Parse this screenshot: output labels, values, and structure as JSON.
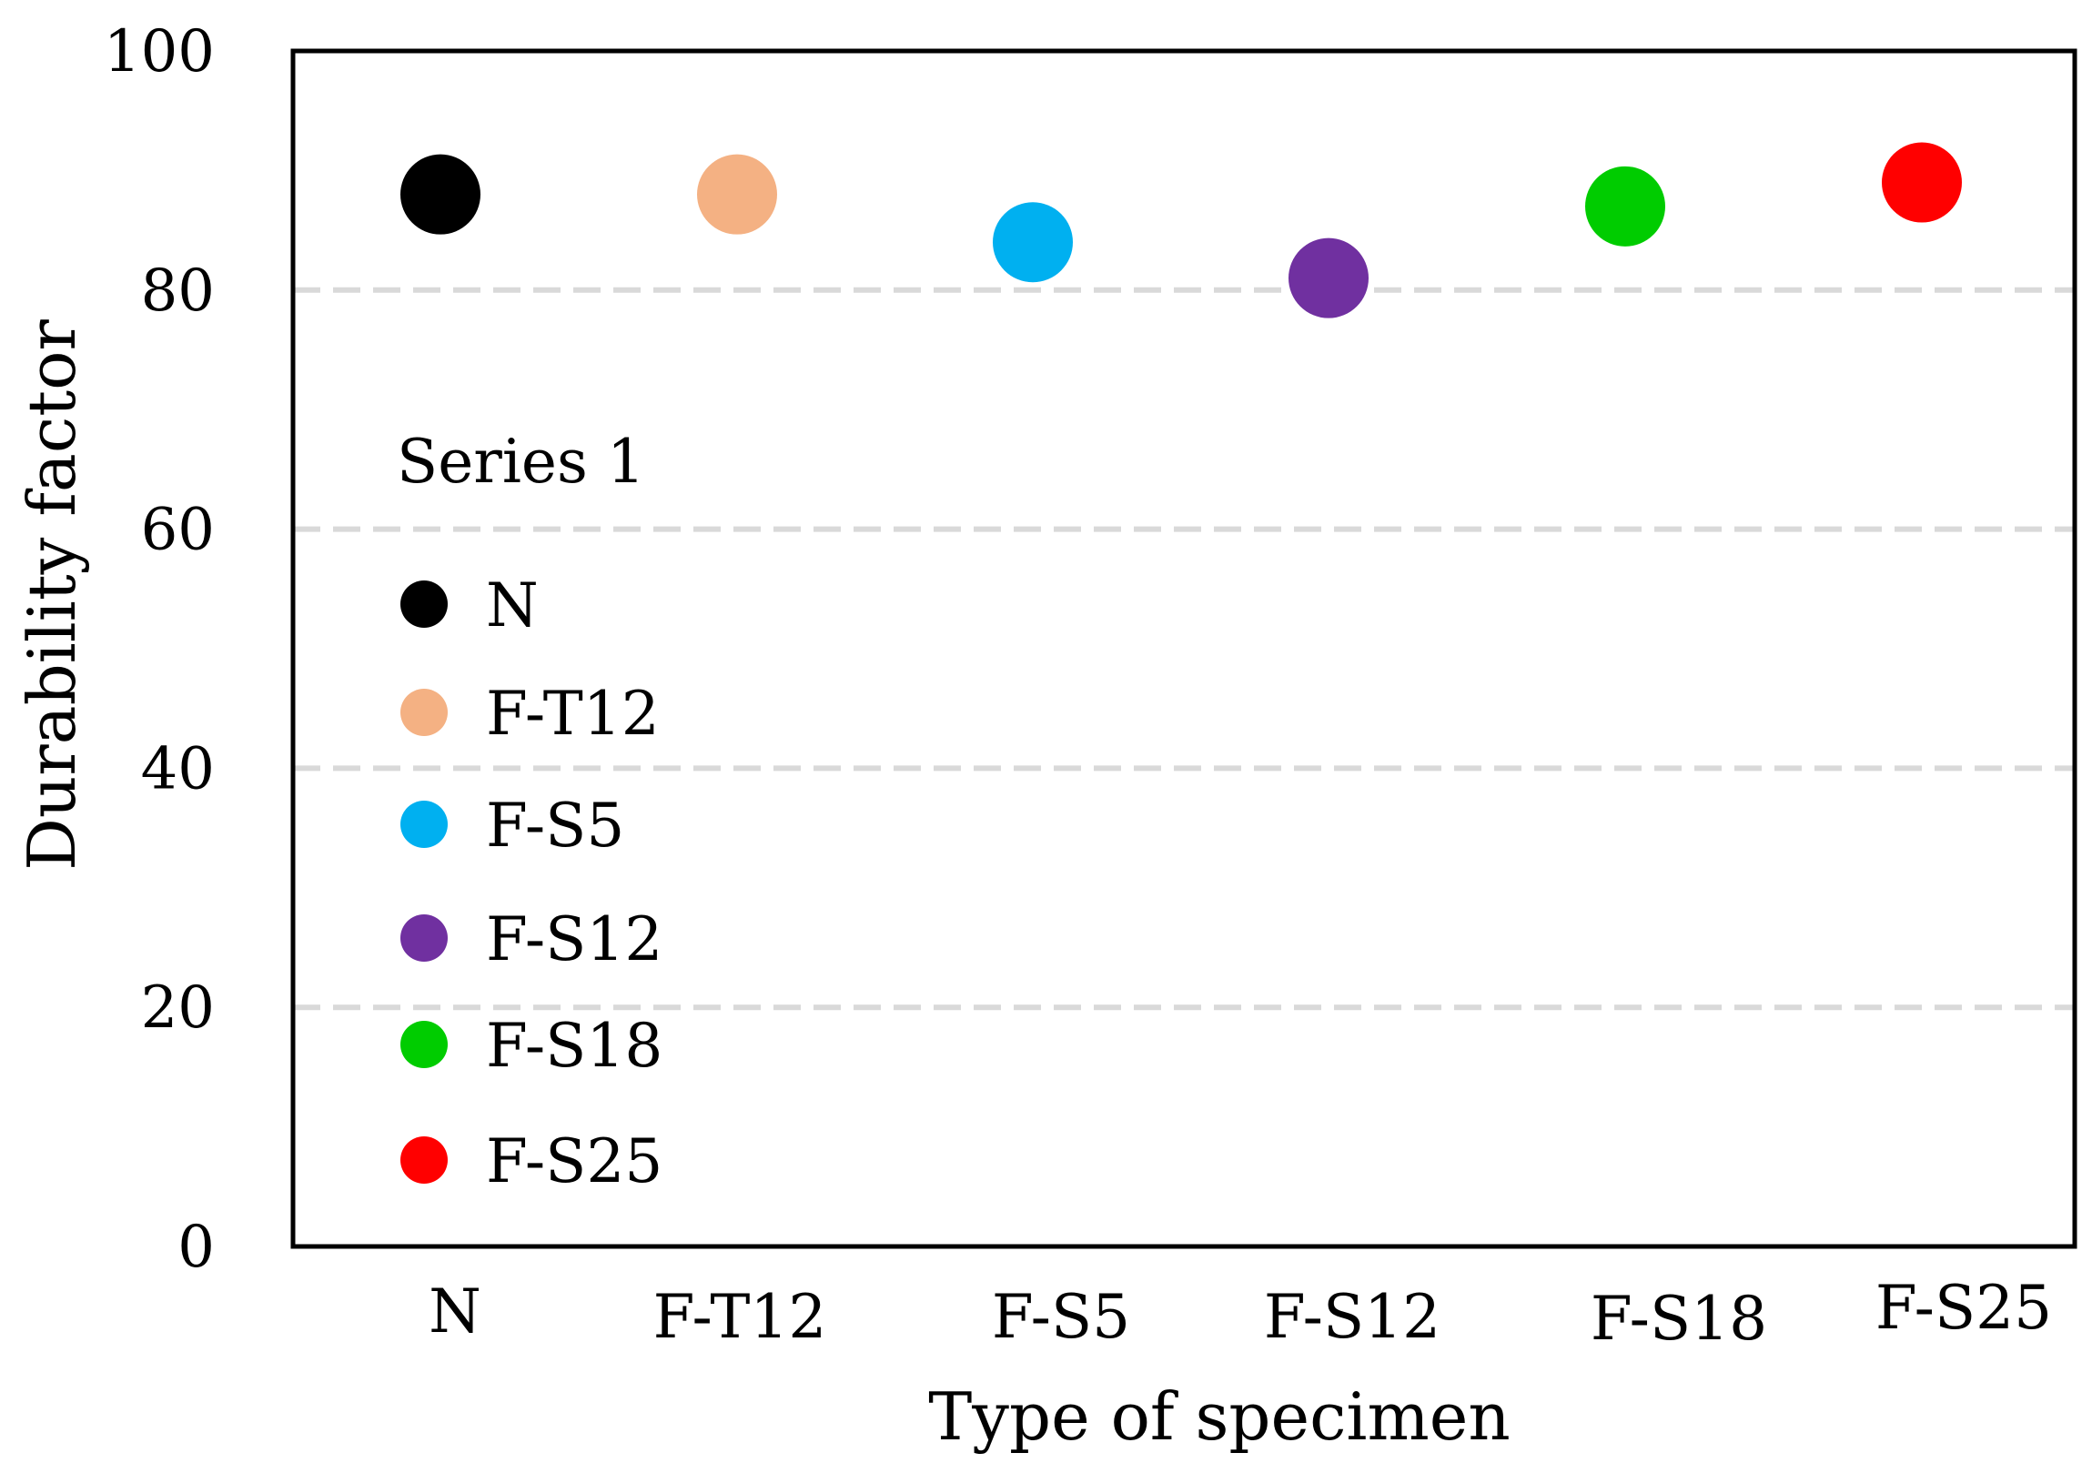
{
  "chart_data": {
    "type": "scatter",
    "title": "",
    "xlabel": "Type of specimen",
    "ylabel": "Durability factor",
    "ylim": [
      0,
      100
    ],
    "yticks": [
      "0",
      "20",
      "40",
      "60",
      "80",
      "100"
    ],
    "grid": "horizontal dashed",
    "categories": [
      "N",
      "F-T12",
      "F-S5",
      "F-S12",
      "F-S18",
      "F-S25"
    ],
    "legend_title": "Series 1",
    "legend_position": "center-left",
    "points": [
      {
        "name": "N",
        "value": 88,
        "color": "#000000"
      },
      {
        "name": "F-T12",
        "value": 88,
        "color": "#F4B183"
      },
      {
        "name": "F-S5",
        "value": 84,
        "color": "#00B0F0"
      },
      {
        "name": "F-S12",
        "value": 81,
        "color": "#7030A0"
      },
      {
        "name": "F-S18",
        "value": 87,
        "color": "#00CC00"
      },
      {
        "name": "F-S25",
        "value": 89,
        "color": "#FF0000"
      }
    ]
  }
}
